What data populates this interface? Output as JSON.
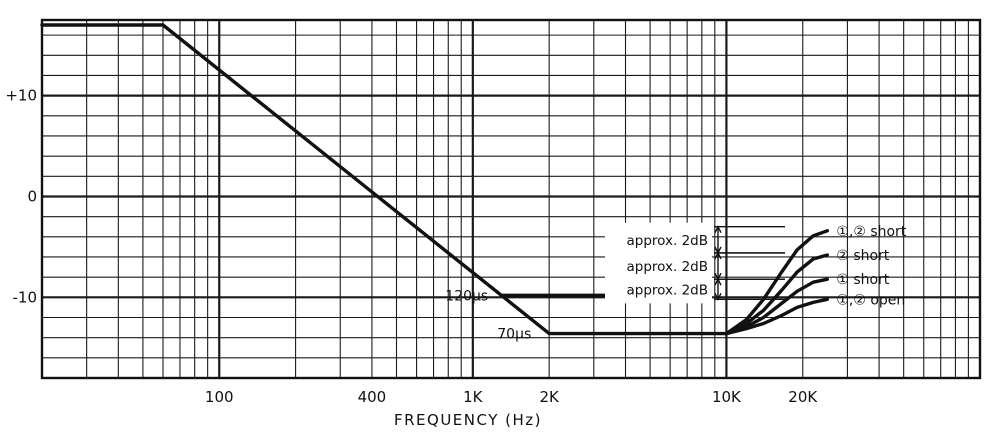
{
  "chart_data": {
    "type": "line",
    "xlabel": "FREQUENCY (Hz)",
    "ylabel": "",
    "x_scale": "log",
    "xlim": [
      20,
      100000
    ],
    "ylim": [
      -18,
      17.5
    ],
    "grid": true,
    "x_tick_labels": [
      {
        "value": 100,
        "label": "100"
      },
      {
        "value": 400,
        "label": "400"
      },
      {
        "value": 1000,
        "label": "1K"
      },
      {
        "value": 2000,
        "label": "2K"
      },
      {
        "value": 10000,
        "label": "10K"
      },
      {
        "value": 20000,
        "label": "20K"
      }
    ],
    "y_tick_labels": [
      {
        "value": 10,
        "label": "+10"
      },
      {
        "value": 0,
        "label": "0"
      },
      {
        "value": -10,
        "label": "-10"
      }
    ],
    "series": [
      {
        "points": [
          [
            20,
            17
          ],
          [
            60,
            17
          ],
          [
            2000,
            -13.6
          ],
          [
            10000,
            -13.6
          ]
        ]
      },
      {
        "points": [
          [
            1300,
            -9.8
          ],
          [
            3500,
            -9.8
          ]
        ]
      },
      {
        "name": "①,② short",
        "points": [
          [
            10000,
            -13.6
          ],
          [
            12000,
            -12.2
          ],
          [
            14000,
            -10.2
          ],
          [
            16500,
            -7.5
          ],
          [
            19000,
            -5.3
          ],
          [
            22000,
            -3.9
          ],
          [
            25000,
            -3.4
          ]
        ]
      },
      {
        "name": "② short",
        "points": [
          [
            10000,
            -13.6
          ],
          [
            12000,
            -12.6
          ],
          [
            14000,
            -11.3
          ],
          [
            16500,
            -9.3
          ],
          [
            19000,
            -7.5
          ],
          [
            22000,
            -6.2
          ],
          [
            25000,
            -5.8
          ]
        ]
      },
      {
        "name": "① short",
        "points": [
          [
            10000,
            -13.6
          ],
          [
            12000,
            -12.9
          ],
          [
            14000,
            -12.0
          ],
          [
            16500,
            -10.6
          ],
          [
            19000,
            -9.4
          ],
          [
            22000,
            -8.5
          ],
          [
            25000,
            -8.2
          ]
        ]
      },
      {
        "name": "①,② open",
        "points": [
          [
            10000,
            -13.6
          ],
          [
            12000,
            -13.1
          ],
          [
            14000,
            -12.6
          ],
          [
            16500,
            -11.8
          ],
          [
            19000,
            -11.0
          ],
          [
            22000,
            -10.5
          ],
          [
            25000,
            -10.2
          ]
        ]
      }
    ],
    "annotations": [
      {
        "text": "120µs",
        "x": 1150,
        "y": -9.8
      },
      {
        "text": "70µs",
        "x": 1700,
        "y": -13.6
      },
      {
        "text": "approx. 2dB",
        "y_from": -3.0,
        "y_to": -5.6
      },
      {
        "text": "approx. 2dB",
        "y_from": -5.6,
        "y_to": -8.2
      },
      {
        "text": "approx. 2dB",
        "y_from": -8.2,
        "y_to": -10.2
      }
    ]
  }
}
